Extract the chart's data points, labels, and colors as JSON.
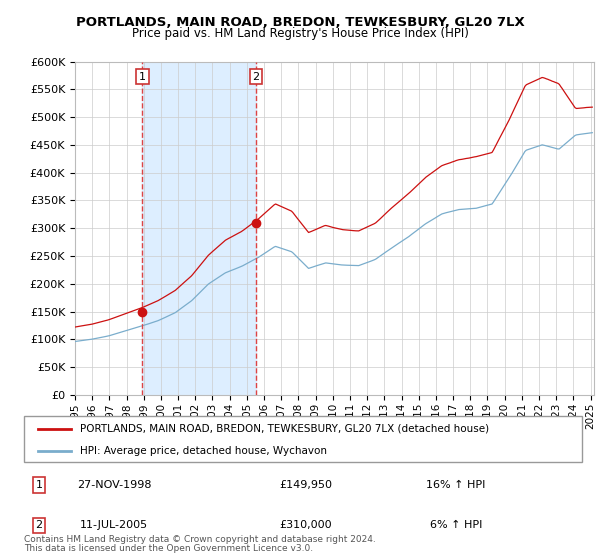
{
  "title": "PORTLANDS, MAIN ROAD, BREDON, TEWKESBURY, GL20 7LX",
  "subtitle": "Price paid vs. HM Land Registry's House Price Index (HPI)",
  "legend_line1": "PORTLANDS, MAIN ROAD, BREDON, TEWKESBURY, GL20 7LX (detached house)",
  "legend_line2": "HPI: Average price, detached house, Wychavon",
  "annotation1_label": "1",
  "annotation1_date": "27-NOV-1998",
  "annotation1_price": "£149,950",
  "annotation1_hpi": "16% ↑ HPI",
  "annotation2_label": "2",
  "annotation2_date": "11-JUL-2005",
  "annotation2_price": "£310,000",
  "annotation2_hpi": "6% ↑ HPI",
  "footnote1": "Contains HM Land Registry data © Crown copyright and database right 2024.",
  "footnote2": "This data is licensed under the Open Government Licence v3.0.",
  "hpi_color": "#7aadcc",
  "price_color": "#cc1111",
  "shade_color": "#ddeeff",
  "background_color": "#ffffff",
  "grid_color": "#cccccc",
  "vline_color": "#dd4444",
  "ylim": [
    0,
    600000
  ],
  "yticks": [
    0,
    50000,
    100000,
    150000,
    200000,
    250000,
    300000,
    350000,
    400000,
    450000,
    500000,
    550000,
    600000
  ],
  "ytick_labels": [
    "£0",
    "£50K",
    "£100K",
    "£150K",
    "£200K",
    "£250K",
    "£300K",
    "£350K",
    "£400K",
    "£450K",
    "£500K",
    "£550K",
    "£600K"
  ],
  "xmin_year": 1995.0,
  "xmax_year": 2025.2,
  "xtick_years": [
    1995,
    1996,
    1997,
    1998,
    1999,
    2000,
    2001,
    2002,
    2003,
    2004,
    2005,
    2006,
    2007,
    2008,
    2009,
    2010,
    2011,
    2012,
    2013,
    2014,
    2015,
    2016,
    2017,
    2018,
    2019,
    2020,
    2021,
    2022,
    2023,
    2024,
    2025
  ],
  "sale1_x": 1998.92,
  "sale1_y": 149950,
  "sale2_x": 2005.54,
  "sale2_y": 310000
}
